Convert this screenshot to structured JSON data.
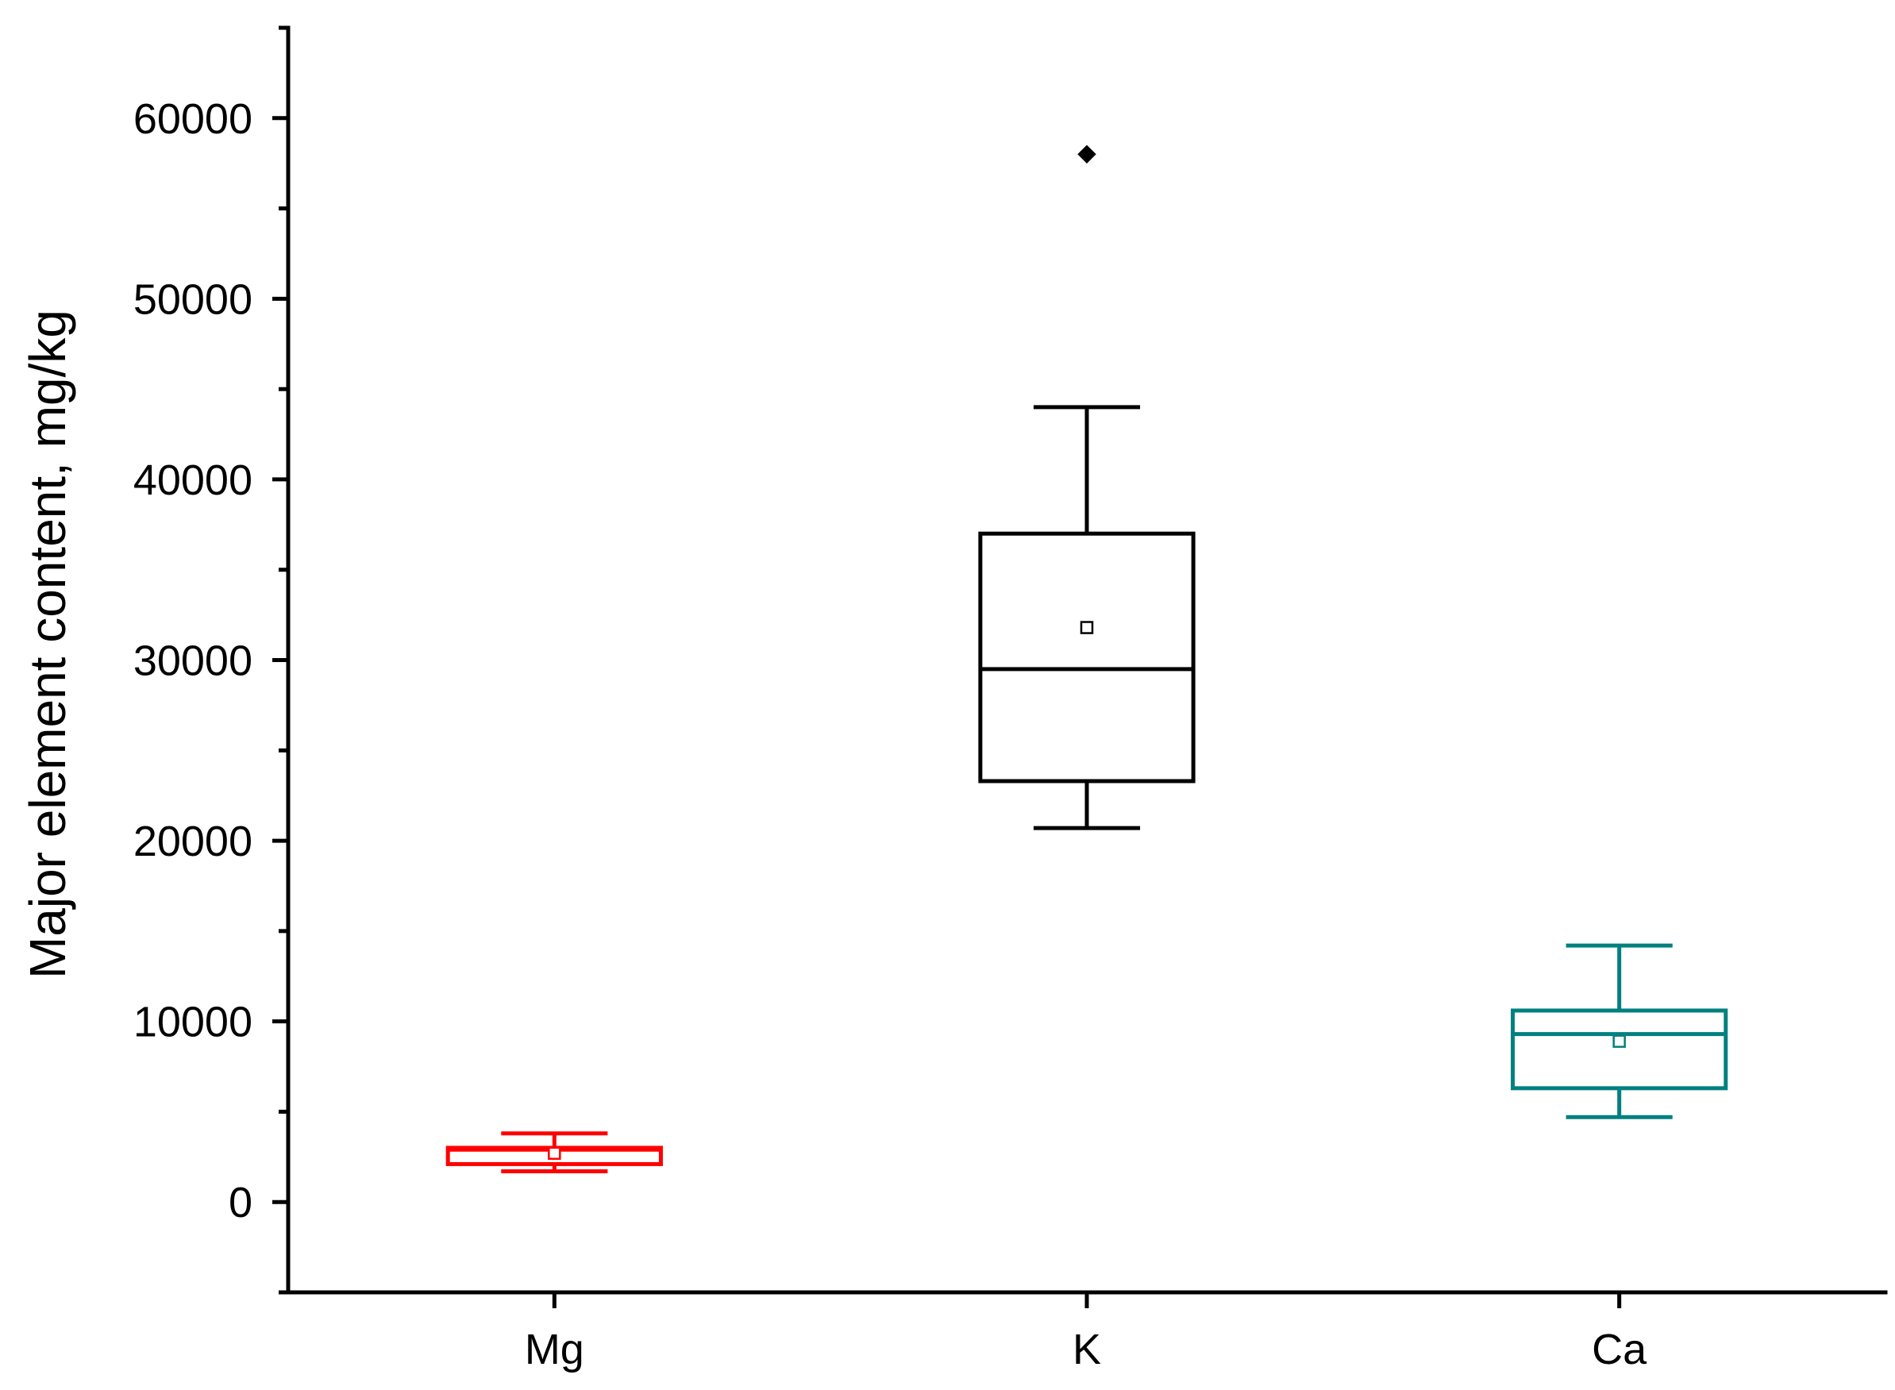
{
  "chart_data": {
    "type": "box",
    "ylabel": "Major element content, mg/kg",
    "xlabel": "",
    "ylim": [
      -5000,
      65000
    ],
    "y_ticks": [
      0,
      10000,
      20000,
      30000,
      40000,
      50000,
      60000
    ],
    "y_minor_step": 5000,
    "grid": false,
    "categories": [
      "Mg",
      "K",
      "Ca"
    ],
    "boxes": [
      {
        "category": "Mg",
        "color": "#ff0000",
        "whisker_low": 1700,
        "q1": 2100,
        "median": 2900,
        "q3": 3000,
        "whisker_high": 3800,
        "mean": 2700,
        "outliers": []
      },
      {
        "category": "K",
        "color": "#000000",
        "whisker_low": 20700,
        "q1": 23300,
        "median": 29500,
        "q3": 37000,
        "whisker_high": 44000,
        "mean": 31800,
        "outliers": [
          58000
        ]
      },
      {
        "category": "Ca",
        "color": "#008080",
        "whisker_low": 4700,
        "q1": 6300,
        "median": 9300,
        "q3": 10600,
        "whisker_high": 14200,
        "mean": 8900,
        "outliers": []
      }
    ]
  }
}
